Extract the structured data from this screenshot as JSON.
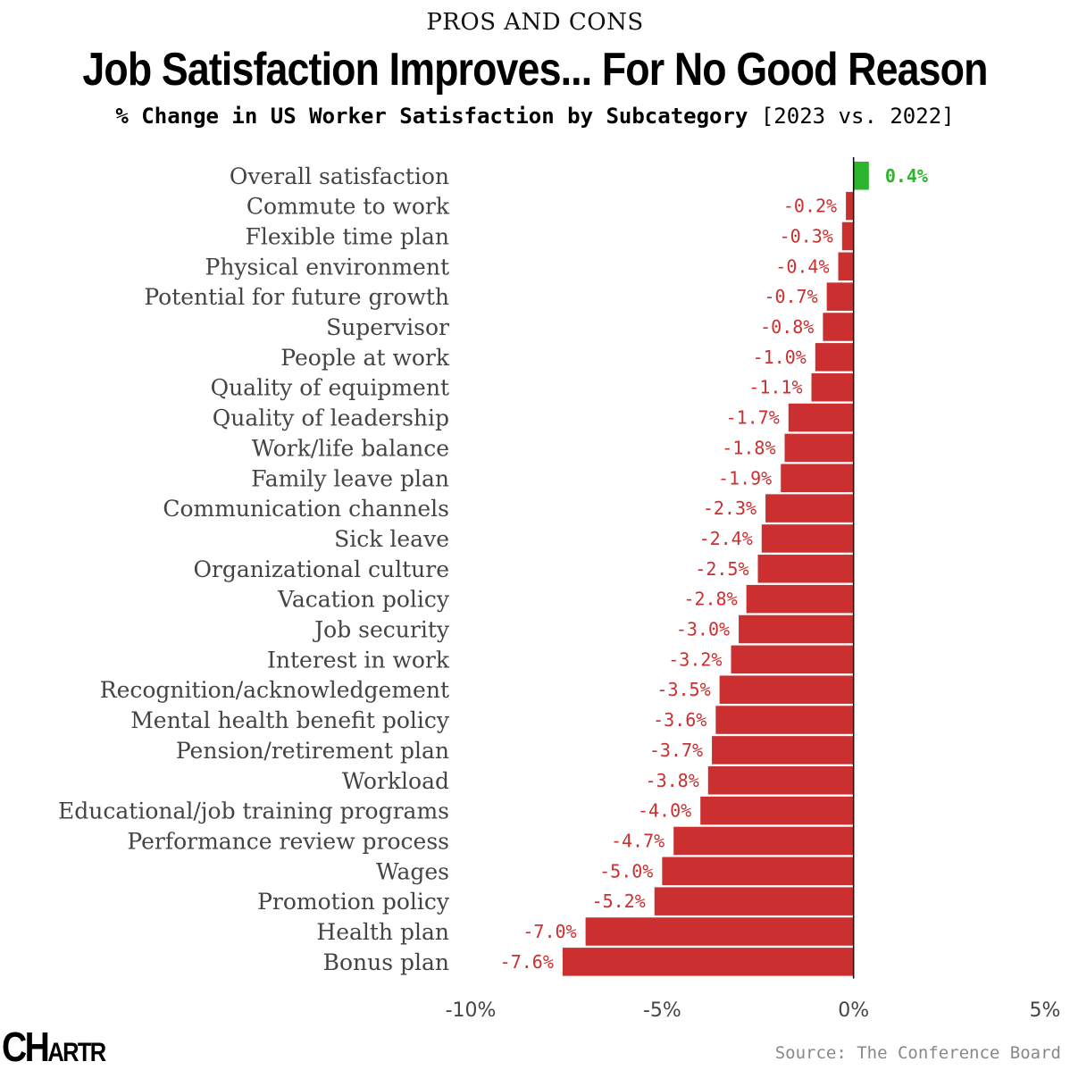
{
  "header": {
    "kicker": "PROS AND CONS",
    "title": "Job Satisfaction Improves... For No Good Reason",
    "subtitle_main": "% Change in US Worker Satisfaction by Subcategory",
    "subtitle_bracket": "[2023 vs. 2022]"
  },
  "footer": {
    "logo_big": "CH",
    "logo_small": "ARTR",
    "source": "Source: The Conference Board"
  },
  "colors": {
    "positive": "#2db52d",
    "negative": "#cc2f2f",
    "axis": "#000000"
  },
  "chart_data": {
    "type": "bar",
    "orientation": "horizontal",
    "title": "Job Satisfaction Improves... For No Good Reason",
    "subtitle": "% Change in US Worker Satisfaction by Subcategory [2023 vs. 2022]",
    "xlim": [
      -10,
      5
    ],
    "xticks": [
      -10,
      -5,
      0,
      5
    ],
    "xtick_labels": [
      "-10%",
      "-5%",
      "0%",
      "5%"
    ],
    "categories": [
      "Overall satisfaction",
      "Commute to work",
      "Flexible time plan",
      "Physical environment",
      "Potential for future growth",
      "Supervisor",
      "People at work",
      "Quality of equipment",
      "Quality of leadership",
      "Work/life balance",
      "Family leave plan",
      "Communication channels",
      "Sick leave",
      "Organizational culture",
      "Vacation policy",
      "Job security",
      "Interest in work",
      "Recognition/acknowledgement",
      "Mental health benefit policy",
      "Pension/retirement plan",
      "Workload",
      "Educational/job training programs",
      "Performance review process",
      "Wages",
      "Promotion policy",
      "Health plan",
      "Bonus plan"
    ],
    "values": [
      0.4,
      -0.2,
      -0.3,
      -0.4,
      -0.7,
      -0.8,
      -1.0,
      -1.1,
      -1.7,
      -1.8,
      -1.9,
      -2.3,
      -2.4,
      -2.5,
      -2.8,
      -3.0,
      -3.2,
      -3.5,
      -3.6,
      -3.7,
      -3.8,
      -4.0,
      -4.7,
      -5.0,
      -5.2,
      -7.0,
      -7.6
    ],
    "value_labels": [
      "0.4%",
      "-0.2%",
      "-0.3%",
      "-0.4%",
      "-0.7%",
      "-0.8%",
      "-1.0%",
      "-1.1%",
      "-1.7%",
      "-1.8%",
      "-1.9%",
      "-2.3%",
      "-2.4%",
      "-2.5%",
      "-2.8%",
      "-3.0%",
      "-3.2%",
      "-3.5%",
      "-3.6%",
      "-3.7%",
      "-3.8%",
      "-4.0%",
      "-4.7%",
      "-5.0%",
      "-5.2%",
      "-7.0%",
      "-7.6%"
    ],
    "grid": false
  }
}
